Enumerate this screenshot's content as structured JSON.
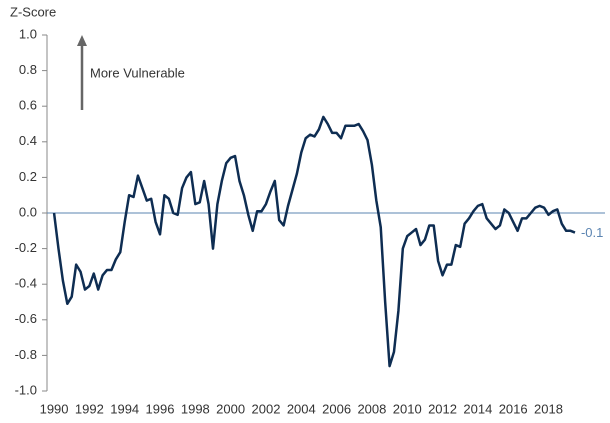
{
  "chart_data": {
    "type": "line",
    "y_axis_label": "Z-Score",
    "annotation": "More Vulnerable",
    "x": [
      1990,
      1990.25,
      1990.5,
      1990.75,
      1991,
      1991.25,
      1991.5,
      1991.75,
      1992,
      1992.25,
      1992.5,
      1992.75,
      1993,
      1993.25,
      1993.5,
      1993.75,
      1994,
      1994.25,
      1994.5,
      1994.75,
      1995,
      1995.25,
      1995.5,
      1995.75,
      1996,
      1996.25,
      1996.5,
      1996.75,
      1997,
      1997.25,
      1997.5,
      1997.75,
      1998,
      1998.25,
      1998.5,
      1998.75,
      1999,
      1999.25,
      1999.5,
      1999.75,
      2000,
      2000.25,
      2000.5,
      2000.75,
      2001,
      2001.25,
      2001.5,
      2001.75,
      2002,
      2002.25,
      2002.5,
      2002.75,
      2003,
      2003.25,
      2003.5,
      2003.75,
      2004,
      2004.25,
      2004.5,
      2004.75,
      2005,
      2005.25,
      2005.5,
      2005.75,
      2006,
      2006.25,
      2006.5,
      2006.75,
      2007,
      2007.25,
      2007.5,
      2007.75,
      2008,
      2008.25,
      2008.5,
      2008.75,
      2009,
      2009.25,
      2009.5,
      2009.75,
      2010,
      2010.25,
      2010.5,
      2010.75,
      2011,
      2011.25,
      2011.5,
      2011.75,
      2012,
      2012.25,
      2012.5,
      2012.75,
      2013,
      2013.25,
      2013.5,
      2013.75,
      2014,
      2014.25,
      2014.5,
      2014.75,
      2015,
      2015.25,
      2015.5,
      2015.75,
      2016,
      2016.25,
      2016.5,
      2016.75,
      2017,
      2017.25,
      2017.5,
      2017.75,
      2018,
      2018.25,
      2018.5,
      2018.75,
      2019,
      2019.25,
      2019.5
    ],
    "series": [
      {
        "color": "#0e2d52",
        "values": [
          0.0,
          -0.2,
          -0.38,
          -0.51,
          -0.47,
          -0.29,
          -0.33,
          -0.43,
          -0.41,
          -0.34,
          -0.43,
          -0.35,
          -0.32,
          -0.32,
          -0.26,
          -0.22,
          -0.05,
          0.1,
          0.09,
          0.21,
          0.14,
          0.07,
          0.08,
          -0.05,
          -0.12,
          0.1,
          0.08,
          0.0,
          -0.01,
          0.14,
          0.2,
          0.23,
          0.05,
          0.06,
          0.18,
          0.05,
          -0.2,
          0.05,
          0.18,
          0.28,
          0.31,
          0.32,
          0.18,
          0.1,
          -0.01,
          -0.1,
          0.01,
          0.01,
          0.05,
          0.12,
          0.18,
          -0.04,
          -0.07,
          0.04,
          0.13,
          0.22,
          0.34,
          0.42,
          0.44,
          0.43,
          0.47,
          0.54,
          0.5,
          0.45,
          0.45,
          0.42,
          0.49,
          0.49,
          0.49,
          0.5,
          0.46,
          0.41,
          0.27,
          0.07,
          -0.08,
          -0.5,
          -0.86,
          -0.78,
          -0.55,
          -0.2,
          -0.13,
          -0.11,
          -0.09,
          -0.18,
          -0.15,
          -0.07,
          -0.07,
          -0.27,
          -0.35,
          -0.29,
          -0.29,
          -0.18,
          -0.19,
          -0.06,
          -0.03,
          0.01,
          0.04,
          0.05,
          -0.03,
          -0.06,
          -0.09,
          -0.07,
          0.02,
          0.0,
          -0.05,
          -0.1,
          -0.03,
          -0.03,
          0.0,
          0.03,
          0.04,
          0.03,
          -0.01,
          0.01,
          0.02,
          -0.06,
          -0.1,
          -0.1,
          -0.11
        ],
        "last_value_label": "-0.1"
      }
    ],
    "xlim": [
      1989.6,
      2021.2
    ],
    "xticks": [
      1990,
      1992,
      1994,
      1996,
      1998,
      2000,
      2002,
      2004,
      2006,
      2008,
      2010,
      2012,
      2014,
      2016,
      2018
    ],
    "ylim": [
      -1,
      1
    ],
    "yticks": [
      {
        "value": -1,
        "label": "-1.0"
      },
      -0.8,
      -0.6,
      -0.4,
      -0.2,
      {
        "value": 0,
        "label": "0.0"
      },
      0.2,
      0.4,
      0.6,
      0.8,
      {
        "value": 1,
        "label": "1.0"
      }
    ],
    "zero_line": true
  }
}
